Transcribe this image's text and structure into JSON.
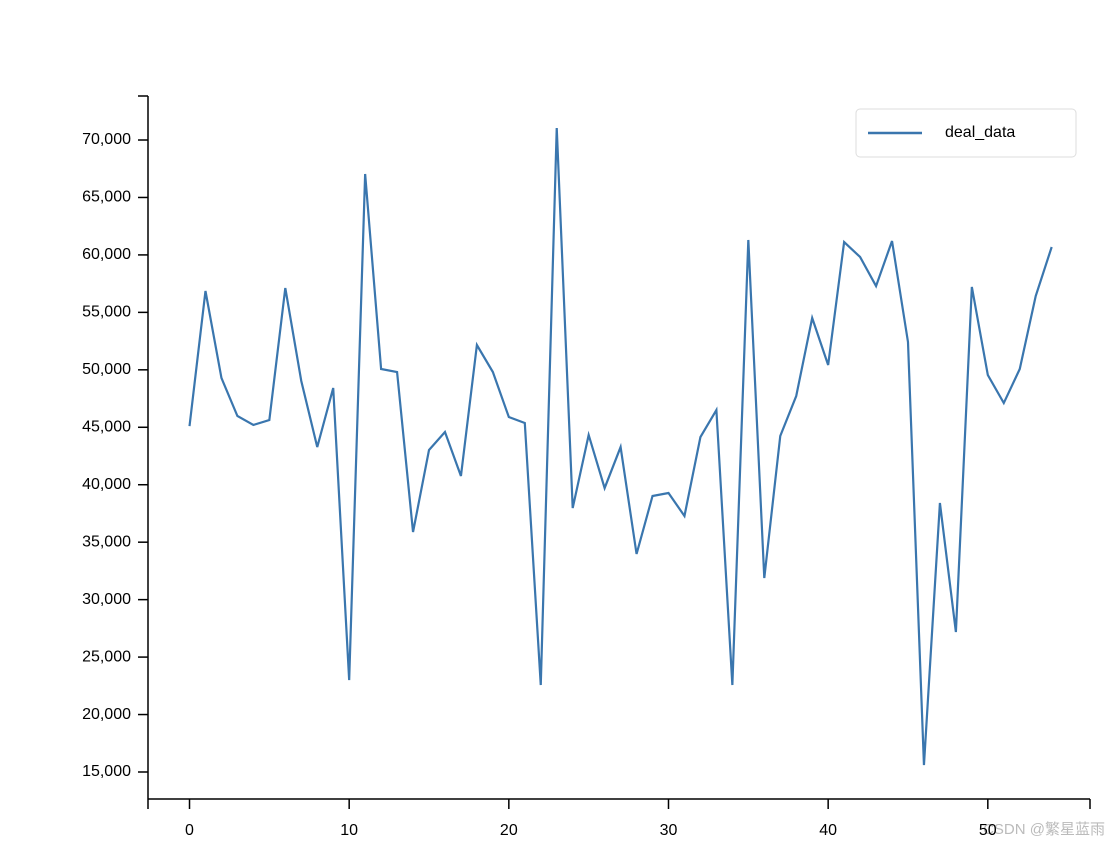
{
  "chart_data": {
    "type": "line",
    "x": [
      0,
      1,
      2,
      3,
      4,
      5,
      6,
      7,
      8,
      9,
      10,
      11,
      12,
      13,
      14,
      15,
      16,
      17,
      18,
      19,
      20,
      21,
      22,
      23,
      24,
      25,
      26,
      27,
      28,
      29,
      30,
      31,
      32,
      33,
      34,
      35,
      36,
      37,
      38,
      39,
      40,
      41,
      42,
      43,
      44,
      45,
      46,
      47,
      48,
      49,
      50,
      51,
      52,
      53,
      54
    ],
    "series": [
      {
        "name": "deal_data",
        "color": "#3a76ae",
        "values": [
          45100,
          56860,
          49290,
          45980,
          45200,
          45630,
          57120,
          49030,
          43280,
          48420,
          23000,
          67040,
          50070,
          49810,
          35880,
          43020,
          44590,
          40760,
          52160,
          49810,
          45890,
          45370,
          22570,
          71040,
          37970,
          44330,
          39710,
          43280,
          33970,
          39020,
          39280,
          37280,
          44150,
          46500,
          22570,
          61300,
          31880,
          44240,
          47720,
          54510,
          50420,
          61120,
          59820,
          57290,
          61210,
          52420,
          15600,
          38410,
          27180,
          57210,
          49550,
          47110,
          50070,
          56420,
          60690
        ]
      }
    ],
    "xlim": [
      -2.6,
      56.4
    ],
    "xticks": [
      0,
      10,
      20,
      30,
      40,
      50
    ],
    "ylim": [
      12650,
      73830
    ],
    "yticks": [
      {
        "value": 15000,
        "label": "15,000"
      },
      {
        "value": 20000,
        "label": "20,000"
      },
      {
        "value": 25000,
        "label": "25,000"
      },
      {
        "value": 30000,
        "label": "30,000"
      },
      {
        "value": 35000,
        "label": "35,000"
      },
      {
        "value": 40000,
        "label": "40,000"
      },
      {
        "value": 45000,
        "label": "45,000"
      },
      {
        "value": 50000,
        "label": "50,000"
      },
      {
        "value": 55000,
        "label": "55,000"
      },
      {
        "value": 60000,
        "label": "60,000"
      },
      {
        "value": 65000,
        "label": "65,000"
      },
      {
        "value": 70000,
        "label": "70,000"
      }
    ],
    "legend": "upper right",
    "grid": false,
    "watermark": "CSDN @繁星蓝雨"
  }
}
